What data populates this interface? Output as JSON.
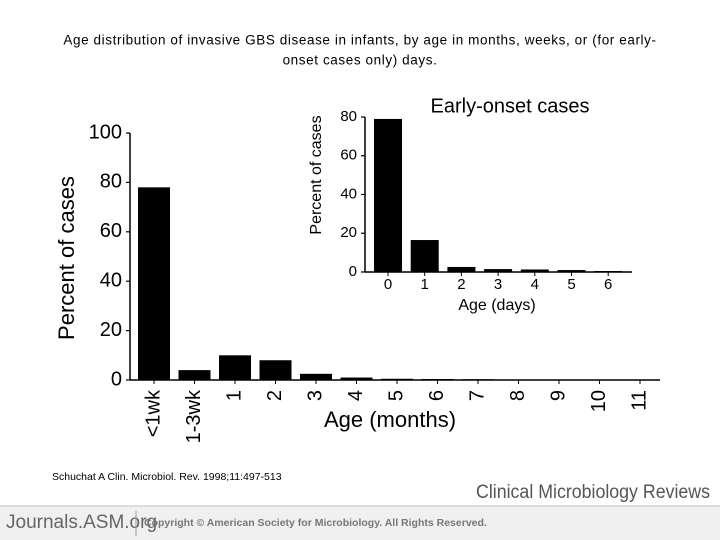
{
  "slide": {
    "title_line1": "Age distribution of invasive GBS disease in infants, by age in months, weeks, or (for early-",
    "title_line2": "onset cases only) days.",
    "source": "Schuchat A Clin. Microbiol. Rev. 1998;11:497-513",
    "journal": "Clinical Microbiology Reviews",
    "site": "Journals.ASM.org",
    "copyright": "Copyright © American Society for Microbiology. All Rights Reserved."
  },
  "chart_data": [
    {
      "type": "bar",
      "y_label": "Percent of cases",
      "x_label": "Age (months)",
      "categories": [
        "<1wk",
        "1-3wk",
        "1",
        "2",
        "3",
        "4",
        "5",
        "6",
        "7",
        "8",
        "9",
        "10",
        "11"
      ],
      "values": [
        78,
        4,
        10,
        8,
        2.5,
        1,
        0.5,
        0.4,
        0.3,
        0.2,
        0.2,
        0.1,
        0.1
      ],
      "color": "#000000",
      "ylim": [
        0,
        100
      ],
      "yticks": [
        0,
        20,
        40,
        60,
        80,
        100
      ]
    },
    {
      "type": "bar",
      "title": "Early-onset cases",
      "y_label": "Percent of cases",
      "x_label": "Age (days)",
      "categories": [
        "0",
        "1",
        "2",
        "3",
        "4",
        "5",
        "6"
      ],
      "values": [
        79,
        16.5,
        2.6,
        1.5,
        1.3,
        1,
        0.5
      ],
      "color": "#000000",
      "ylim": [
        0,
        80
      ],
      "yticks": [
        0,
        20,
        40,
        60,
        80
      ]
    }
  ]
}
